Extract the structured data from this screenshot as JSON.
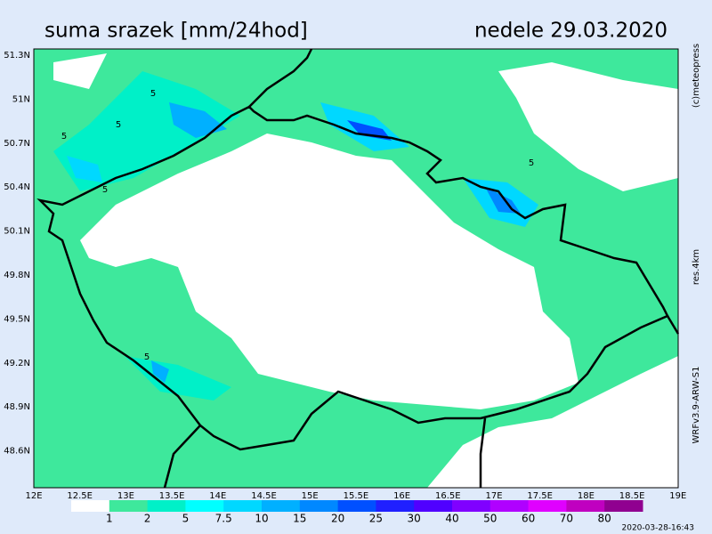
{
  "title": "suma srazek [mm/24hod]",
  "date": "nedele 29.03.2020",
  "lat_labels": [
    "51.3N",
    "51N",
    "50.7N",
    "50.4N",
    "50.1N",
    "49.8N",
    "49.5N",
    "49.2N",
    "48.9N",
    "48.6N"
  ],
  "lon_labels": [
    "12E",
    "12.5E",
    "13E",
    "13.5E",
    "14E",
    "14.5E",
    "15E",
    "15.5E",
    "16E",
    "16.5E",
    "17E",
    "17.5E",
    "18E",
    "18.5E",
    "19E"
  ],
  "colorbar": {
    "labels": [
      "1",
      "2",
      "5",
      "7.5",
      "10",
      "15",
      "20",
      "25",
      "30",
      "40",
      "50",
      "60",
      "70",
      "80"
    ],
    "colors": [
      "#ffffff",
      "#3ee89c",
      "#00f0c8",
      "#00ffff",
      "#00d8ff",
      "#00b0ff",
      "#0088ff",
      "#0050ff",
      "#2020ff",
      "#5000ff",
      "#8000ff",
      "#b000ff",
      "#e000ff",
      "#c000c0",
      "#900090"
    ]
  },
  "side_texts": [
    "(c)meteopress",
    "res.4km",
    "WRFv3.9-ARW-S1"
  ],
  "timestamp": "2020-03-28-16:43",
  "contour_labels": [
    "5",
    "5",
    "5",
    "5",
    "5",
    "5"
  ]
}
